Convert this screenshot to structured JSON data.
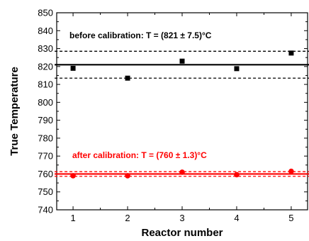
{
  "chart_data": {
    "type": "scatter",
    "xlabel": "Reactor number",
    "ylabel": "True Temperature",
    "xlim": [
      0.7,
      5.3
    ],
    "ylim": [
      740,
      850
    ],
    "x_ticks": [
      1,
      2,
      3,
      4,
      5
    ],
    "y_ticks": [
      740,
      750,
      760,
      770,
      780,
      790,
      800,
      810,
      820,
      830,
      840,
      850
    ],
    "grid": false,
    "legend": "none",
    "series": [
      {
        "marker": "square",
        "color": "#000000",
        "x": [
          1,
          2,
          3,
          4,
          5
        ],
        "y": [
          819,
          813.5,
          823,
          818.8,
          827.5
        ],
        "mean": 821,
        "band": 7.5,
        "annotation": "before calibration: T = (821 ± 7.5)°C"
      },
      {
        "marker": "circle",
        "color": "#ff0000",
        "x": [
          1,
          2,
          3,
          4,
          5
        ],
        "y": [
          759,
          759,
          761,
          759.6,
          761.5
        ],
        "mean": 760,
        "band": 1.3,
        "annotation": "after calibration: T = (760 ± 1.3)°C"
      }
    ]
  }
}
